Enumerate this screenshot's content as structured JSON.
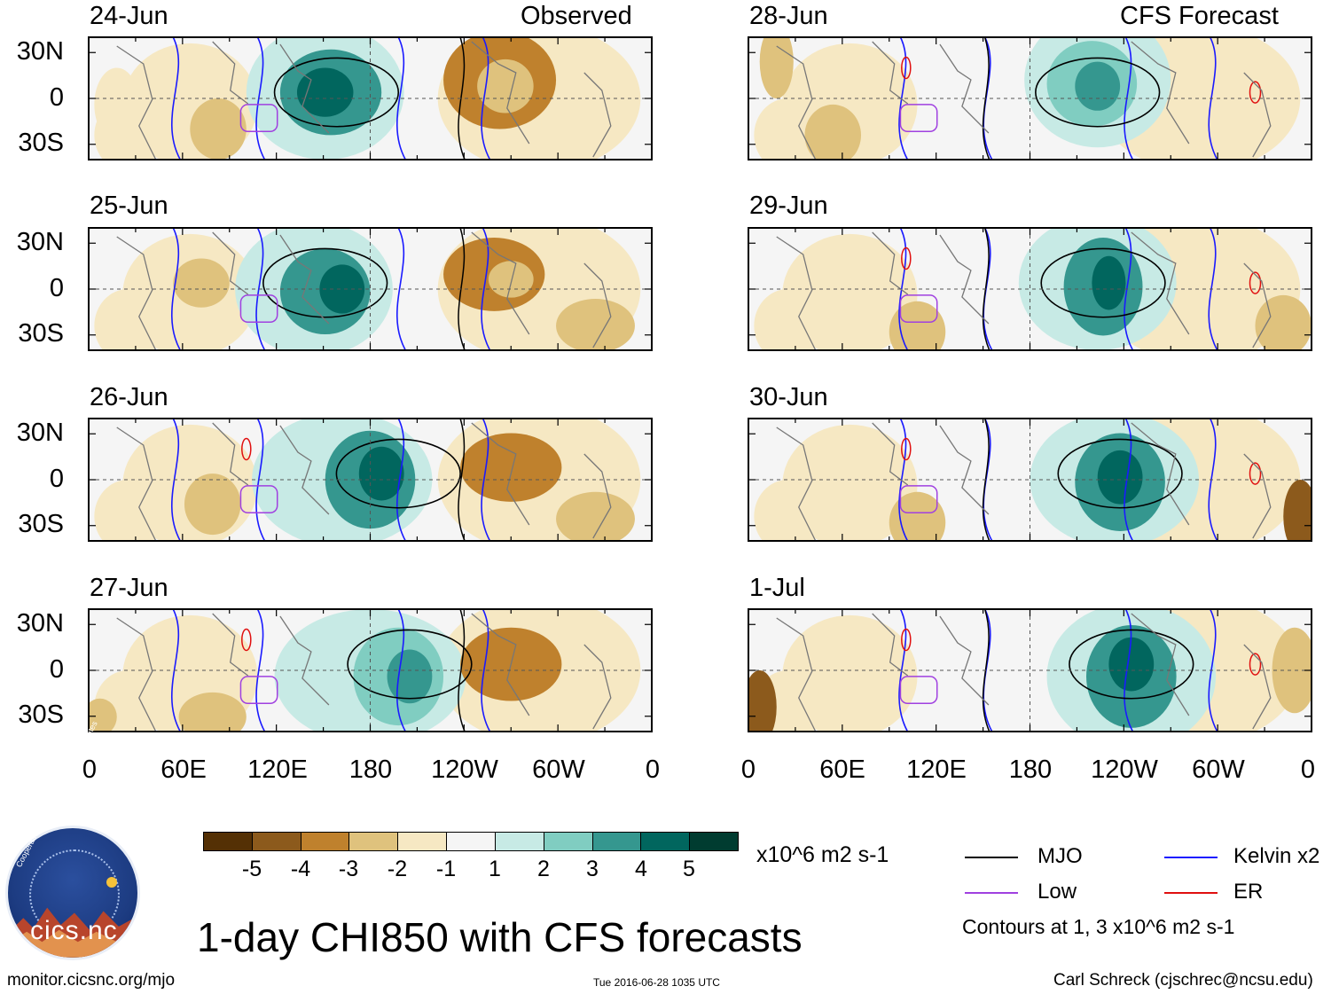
{
  "panels": [
    {
      "date": "24-Jun",
      "tag": "Observed"
    },
    {
      "date": "25-Jun",
      "tag": ""
    },
    {
      "date": "26-Jun",
      "tag": ""
    },
    {
      "date": "27-Jun",
      "tag": ""
    },
    {
      "date": "28-Jun",
      "tag": "CFS Forecast"
    },
    {
      "date": "29-Jun",
      "tag": ""
    },
    {
      "date": "30-Jun",
      "tag": ""
    },
    {
      "date": "1-Jul",
      "tag": ""
    }
  ],
  "lat_labels": [
    "30N",
    "0",
    "30S"
  ],
  "lon_labels": [
    "0",
    "60E",
    "120E",
    "180",
    "120W",
    "60W",
    "0"
  ],
  "colorbar": {
    "colors": [
      "#543005",
      "#8c5a1c",
      "#bf812d",
      "#dfc27d",
      "#f6e8c3",
      "#f5f5f5",
      "#c7eae5",
      "#80cdc1",
      "#35978f",
      "#01665e",
      "#003c30"
    ],
    "labels": [
      "-5",
      "-4",
      "-3",
      "-2",
      "-1",
      "1",
      "2",
      "3",
      "4",
      "5"
    ],
    "units": "x10^6 m2 s-1"
  },
  "legend": {
    "items": [
      {
        "label": "MJO",
        "color": "#000000"
      },
      {
        "label": "Kelvin x2",
        "color": "#1a1aff"
      },
      {
        "label": "Low",
        "color": "#a040e0"
      },
      {
        "label": "ER",
        "color": "#e01010"
      }
    ],
    "contours_note": "Contours at 1, 3 x10^6 m2 s-1"
  },
  "title": "1-day CHI850 with CFS forecasts",
  "footer": {
    "left": "monitor.cicsnc.org/mjo",
    "center": "Tue 2016-06-28 1035 UTC",
    "right": "Carl Schreck (cjschrec@ncsu.edu)"
  },
  "logo": {
    "name": "cics.nc",
    "arc_text": "Cooperative Institute for Climate and Satellites"
  }
}
